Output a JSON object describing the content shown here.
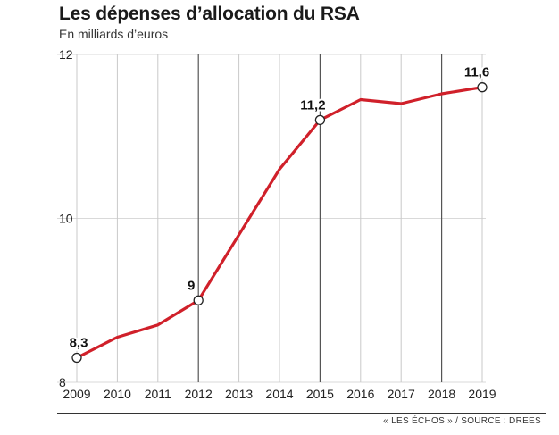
{
  "header": {
    "title": "Les dépenses d’allocation du RSA",
    "subtitle": "En milliards d’euros"
  },
  "footer": {
    "source": "« LES ÉCHOS » / SOURCE : DREES"
  },
  "chart_data": {
    "type": "line",
    "title": "Les dépenses d’allocation du RSA",
    "subtitle": "En milliards d’euros",
    "xlabel": "",
    "ylabel": "",
    "x": [
      2009,
      2010,
      2011,
      2012,
      2013,
      2014,
      2015,
      2016,
      2017,
      2018,
      2019
    ],
    "series": [
      {
        "values": [
          8.3,
          8.55,
          8.7,
          9.0,
          9.8,
          10.6,
          11.2,
          11.45,
          11.4,
          11.52,
          11.6
        ]
      }
    ],
    "x_ticks": [
      "2009",
      "2010",
      "2011",
      "2012",
      "2013",
      "2014",
      "2015",
      "2016",
      "2017",
      "2018",
      "2019"
    ],
    "y_ticks": [
      "8",
      "10",
      "12"
    ],
    "ylim": [
      8,
      12
    ],
    "data_labels": [
      {
        "index": 0,
        "text": "8,3"
      },
      {
        "index": 3,
        "text": "9"
      },
      {
        "index": 6,
        "text": "11,2"
      },
      {
        "index": 10,
        "text": "11,6"
      }
    ],
    "line_color": "#d0202a",
    "grid": true
  }
}
